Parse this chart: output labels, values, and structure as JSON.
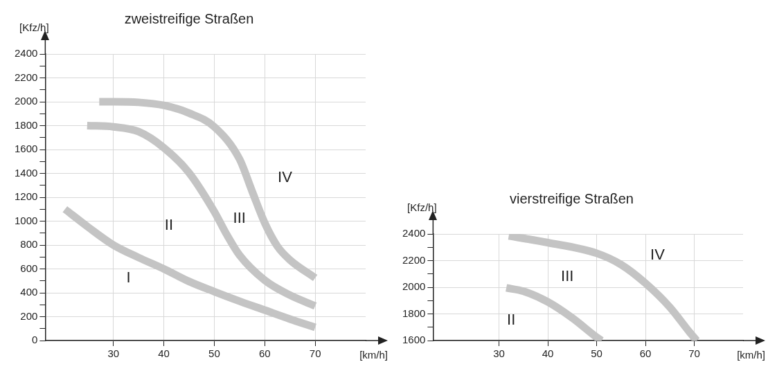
{
  "chart_data": [
    {
      "type": "line",
      "title": "zweistreifige Straßen",
      "xlabel": "[km/h]",
      "ylabel": "[Kfz/h]",
      "xlim": [
        16.5,
        80
      ],
      "xticks": [
        30,
        40,
        50,
        60,
        70
      ],
      "ylim": [
        0,
        2400
      ],
      "yticks": [
        0,
        {
          "value": 100,
          "label": null
        },
        200,
        {
          "value": 300,
          "label": null
        },
        400,
        {
          "value": 500,
          "label": null
        },
        600,
        {
          "value": 700,
          "label": null
        },
        800,
        {
          "value": 900,
          "label": null
        },
        1000,
        {
          "value": 1100,
          "label": null
        },
        1200,
        {
          "value": 1300,
          "label": null
        },
        1400,
        {
          "value": 1500,
          "label": null
        },
        1600,
        {
          "value": 1700,
          "label": null
        },
        1800,
        {
          "value": 1900,
          "label": null
        },
        2000,
        {
          "value": 2100,
          "label": null
        },
        2200,
        {
          "value": 2300,
          "label": null
        },
        2400
      ],
      "grid": true,
      "legend": false,
      "line_style": "solid",
      "marker": "none",
      "series": [
        {
          "color": "#c4c4c4",
          "x": [
            20.4,
            25,
            30,
            35,
            40,
            45,
            50,
            55,
            60,
            65,
            70
          ],
          "values": [
            1100,
            950,
            800,
            695,
            600,
            495,
            410,
            330,
            255,
            180,
            110
          ]
        },
        {
          "color": "#c4c4c4",
          "x": [
            24.8,
            30,
            35,
            40,
            45,
            50,
            52.5,
            55,
            60,
            65,
            70
          ],
          "values": [
            1800,
            1790,
            1750,
            1615,
            1405,
            1080,
            885,
            715,
            505,
            380,
            290
          ]
        },
        {
          "color": "#c4c4c4",
          "x": [
            27.2,
            30,
            35,
            40,
            45,
            50,
            55,
            57.5,
            60,
            62.5,
            65,
            70
          ],
          "values": [
            2000,
            2000,
            1995,
            1970,
            1905,
            1790,
            1520,
            1250,
            985,
            790,
            675,
            525
          ]
        }
      ],
      "annotations": [
        "I",
        "II",
        "III",
        "IV"
      ]
    },
    {
      "type": "line",
      "title": "vierstreifige Straßen",
      "xlabel": "[km/h]",
      "ylabel": "[Kfz/h]",
      "xlim": [
        16.5,
        80
      ],
      "xticks": [
        30,
        40,
        50,
        60,
        70
      ],
      "ylim": [
        1600,
        2400
      ],
      "yticks": [
        1600,
        {
          "value": 1700,
          "label": null
        },
        1800,
        {
          "value": 1900,
          "label": null
        },
        2000,
        {
          "value": 2100,
          "label": null
        },
        2200,
        {
          "value": 2300,
          "label": null
        },
        2400
      ],
      "grid": true,
      "legend": false,
      "line_style": "solid",
      "marker": "none",
      "series": [
        {
          "color": "#c4c4c4",
          "x": [
            31.5,
            35,
            40,
            45,
            50,
            51
          ],
          "values": [
            1995,
            1970,
            1890,
            1770,
            1625,
            1600
          ]
        },
        {
          "color": "#c4c4c4",
          "x": [
            32,
            40,
            50,
            55,
            60,
            65,
            69,
            70.5
          ],
          "values": [
            2385,
            2335,
            2255,
            2170,
            2030,
            1850,
            1665,
            1600
          ]
        }
      ],
      "annotations": [
        "II",
        "III",
        "IV"
      ]
    }
  ]
}
